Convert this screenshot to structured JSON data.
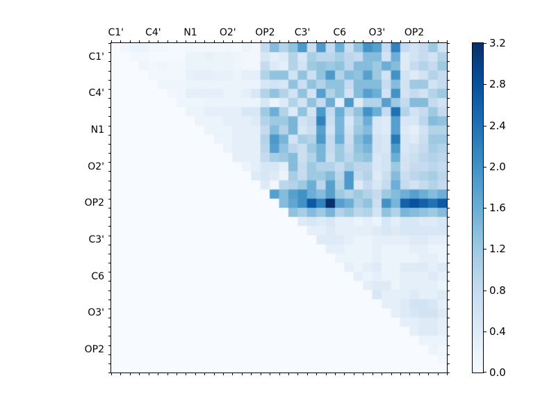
{
  "chart_data": {
    "type": "heatmap",
    "title": "",
    "xlabel": "",
    "ylabel": "",
    "grid": "off",
    "upper_triangular": true,
    "grid_size": 36,
    "cells_per_group": 4,
    "x_group_labels": [
      "C1'",
      "C4'",
      "N1",
      "O2'",
      "OP2",
      "C3'",
      "C6",
      "O3'",
      "OP2"
    ],
    "y_group_labels": [
      "C1'",
      "C4'",
      "N1",
      "O2'",
      "OP2",
      "C3'",
      "C6",
      "O3'",
      "OP2"
    ],
    "colorbar": {
      "position": "right",
      "min": 0.0,
      "max": 3.2,
      "tick_labels": [
        "0.0",
        "0.4",
        "0.8",
        "1.2",
        "1.6",
        "2.0",
        "2.4",
        "2.8",
        "3.2"
      ]
    },
    "colormap": "Blues",
    "colormap_stops": [
      "#f7fbff",
      "#deebf7",
      "#c6dbef",
      "#9ecae1",
      "#6baed6",
      "#4292c6",
      "#2171b5",
      "#08519c",
      "#08306b"
    ],
    "matrix": [
      [
        0,
        0.1,
        0.2,
        0.2,
        0.1,
        0.1,
        0.05,
        0.05,
        0.1,
        0.1,
        0.1,
        0.1,
        0.1,
        0.05,
        0.2,
        0.1,
        0.8,
        1.4,
        1.0,
        1.3,
        1.9,
        0.7,
        1.9,
        0.8,
        1.6,
        0.7,
        1.3,
        2.0,
        1.8,
        0.8,
        2.2,
        0.8,
        0.6,
        0.8,
        1.2,
        0.6
      ],
      [
        0,
        0,
        0.1,
        0.1,
        0.05,
        0.05,
        0.05,
        0.05,
        0.2,
        0.2,
        0.25,
        0.2,
        0.2,
        0.15,
        0.1,
        0.1,
        0.5,
        0.3,
        0.4,
        1.0,
        0.5,
        1.1,
        0.9,
        0.9,
        1.1,
        0.9,
        0.8,
        1.4,
        1.4,
        0.6,
        1.6,
        0.4,
        0.6,
        0.8,
        0.6,
        1.0
      ],
      [
        0,
        0,
        0,
        0.15,
        0.1,
        0.15,
        0.1,
        0.1,
        0.2,
        0.2,
        0.2,
        0.2,
        0.2,
        0.15,
        0.1,
        0.1,
        0.8,
        0.4,
        0.3,
        1.0,
        0.6,
        1.2,
        1.3,
        1.2,
        1.3,
        0.9,
        1.4,
        1.4,
        1.2,
        1.6,
        1.4,
        0.4,
        0.8,
        1.0,
        0.8,
        1.2
      ],
      [
        0,
        0,
        0,
        0,
        0.1,
        0.1,
        0.1,
        0.1,
        0.25,
        0.3,
        0.3,
        0.25,
        0.25,
        0.2,
        0.3,
        0.3,
        1.0,
        1.3,
        1.3,
        0.6,
        1.3,
        0.7,
        1.3,
        1.9,
        1.0,
        1.4,
        1.3,
        1.8,
        1.2,
        0.6,
        2.0,
        0.6,
        0.4,
        0.6,
        1.0,
        0.8
      ],
      [
        0,
        0,
        0,
        0,
        0,
        0.15,
        0.15,
        0.15,
        0.2,
        0.2,
        0.2,
        0.2,
        0.2,
        0.2,
        0.2,
        0.2,
        0.5,
        0.6,
        0.5,
        1.3,
        0.7,
        1.3,
        1.0,
        1.3,
        1.3,
        0.8,
        1.4,
        1.4,
        1.4,
        0.8,
        1.4,
        0.6,
        1.2,
        1.2,
        0.6,
        0.8
      ],
      [
        0,
        0,
        0,
        0,
        0,
        0,
        0.1,
        0.15,
        0.3,
        0.3,
        0.3,
        0.3,
        0.2,
        0.2,
        0.3,
        0.5,
        1.0,
        1.3,
        1.0,
        0.6,
        1.3,
        0.6,
        1.8,
        1.0,
        1.3,
        0.6,
        1.4,
        1.8,
        1.6,
        0.6,
        2.0,
        0.6,
        0.8,
        0.6,
        1.0,
        1.2
      ],
      [
        0,
        0,
        0,
        0,
        0,
        0,
        0,
        0.15,
        0.15,
        0.15,
        0.2,
        0.2,
        0.2,
        0.2,
        0.2,
        0.2,
        0.5,
        0.2,
        0.4,
        1.0,
        0.6,
        1.3,
        0.8,
        1.6,
        0.3,
        1.9,
        0.4,
        1.0,
        1.0,
        1.8,
        1.2,
        0.8,
        1.4,
        1.4,
        0.8,
        0.6
      ],
      [
        0,
        0,
        0,
        0,
        0,
        0,
        0,
        0,
        0.2,
        0.2,
        0.3,
        0.3,
        0.3,
        0.3,
        0.5,
        0.5,
        1.2,
        1.6,
        1.0,
        0.4,
        1.3,
        0.6,
        1.9,
        0.8,
        1.6,
        0.9,
        1.3,
        2.0,
        1.6,
        0.8,
        2.4,
        1.0,
        0.6,
        0.8,
        1.2,
        0.8
      ],
      [
        0,
        0,
        0,
        0,
        0,
        0,
        0,
        0,
        0,
        0.2,
        0.2,
        0.2,
        0.3,
        0.3,
        0.3,
        0.4,
        1.0,
        1.2,
        1.2,
        1.5,
        0.6,
        0.8,
        2.2,
        0.7,
        1.5,
        0.5,
        1.1,
        1.6,
        0.5,
        0.4,
        1.8,
        0.5,
        0.5,
        0.9,
        1.4,
        1.3
      ],
      [
        0,
        0,
        0,
        0,
        0,
        0,
        0,
        0,
        0,
        0,
        0.2,
        0.2,
        0.2,
        0.3,
        0.3,
        0.3,
        0.8,
        1.4,
        1.0,
        1.5,
        0.5,
        0.7,
        1.8,
        0.6,
        1.5,
        0.6,
        1.2,
        1.4,
        0.5,
        0.4,
        1.8,
        0.4,
        0.3,
        0.6,
        1.0,
        1.0
      ],
      [
        0,
        0,
        0,
        0,
        0,
        0,
        0,
        0,
        0,
        0,
        0,
        0.2,
        0.2,
        0.3,
        0.3,
        0.3,
        1.0,
        1.9,
        1.5,
        0.6,
        1.1,
        1.0,
        1.9,
        0.8,
        1.6,
        0.7,
        1.4,
        1.7,
        0.6,
        0.5,
        2.3,
        0.5,
        0.4,
        0.7,
        1.2,
        1.2
      ],
      [
        0,
        0,
        0,
        0,
        0,
        0,
        0,
        0,
        0,
        0,
        0,
        0,
        0.2,
        0.3,
        0.3,
        0.3,
        0.9,
        1.8,
        1.3,
        0.9,
        0.7,
        1.2,
        1.5,
        0.8,
        1.2,
        0.8,
        1.3,
        1.5,
        0.6,
        0.5,
        1.9,
        0.5,
        0.6,
        0.8,
        1.1,
        1.0
      ],
      [
        0,
        0,
        0,
        0,
        0,
        0,
        0,
        0,
        0,
        0,
        0,
        0,
        0,
        0.3,
        0.3,
        0.3,
        0.8,
        1.1,
        1.2,
        1.4,
        0.7,
        1.0,
        1.5,
        0.7,
        1.2,
        0.9,
        1.2,
        1.3,
        0.5,
        0.6,
        1.6,
        0.6,
        0.7,
        0.9,
        1.0,
        0.9
      ],
      [
        0,
        0,
        0,
        0,
        0,
        0,
        0,
        0,
        0,
        0,
        0,
        0,
        0,
        0,
        0.2,
        0.3,
        0.5,
        0.5,
        0.3,
        1.4,
        0.8,
        1.2,
        1.0,
        1.0,
        0.8,
        1.1,
        0.9,
        0.9,
        0.5,
        0.6,
        1.2,
        0.6,
        0.8,
        0.8,
        0.9,
        0.8
      ],
      [
        0,
        0,
        0,
        0,
        0,
        0,
        0,
        0,
        0,
        0,
        0,
        0,
        0,
        0,
        0,
        0.4,
        0.5,
        0.4,
        0.2,
        1.1,
        0.8,
        1.2,
        1.2,
        1.4,
        0.9,
        1.9,
        0.8,
        1.0,
        0.4,
        0.7,
        1.4,
        0.7,
        0.9,
        1.0,
        1.1,
        0.9
      ],
      [
        0,
        0,
        0,
        0,
        0,
        0,
        0,
        0,
        0,
        0,
        0,
        0,
        0,
        0,
        0,
        0,
        0.4,
        0.1,
        0.9,
        1.0,
        1.2,
        1.6,
        0.9,
        1.8,
        1.0,
        1.9,
        0.4,
        0.8,
        0.5,
        0.8,
        1.6,
        0.8,
        0.6,
        0.8,
        1.0,
        0.8
      ],
      [
        0,
        0,
        0,
        0,
        0,
        0,
        0,
        0,
        0,
        0,
        0,
        0,
        0,
        0,
        0,
        0,
        0,
        1.8,
        1.4,
        1.8,
        2.0,
        1.6,
        1.4,
        1.8,
        1.2,
        1.0,
        1.2,
        1.0,
        0.8,
        1.2,
        1.4,
        1.6,
        1.8,
        1.6,
        1.4,
        1.6
      ],
      [
        0,
        0,
        0,
        0,
        0,
        0,
        0,
        0,
        0,
        0,
        0,
        0,
        0,
        0,
        0,
        0,
        0,
        0,
        1.4,
        1.7,
        2.0,
        2.7,
        2.2,
        3.2,
        1.8,
        1.6,
        1.1,
        1.3,
        0.7,
        2.0,
        1.5,
        2.6,
        2.8,
        2.6,
        2.4,
        2.7
      ],
      [
        0,
        0,
        0,
        0,
        0,
        0,
        0,
        0,
        0,
        0,
        0,
        0,
        0,
        0,
        0,
        0,
        0,
        0,
        0,
        1.3,
        1.1,
        1.4,
        1.2,
        1.5,
        1.0,
        1.2,
        0.9,
        1.0,
        0.6,
        1.3,
        1.0,
        1.5,
        1.4,
        1.3,
        1.2,
        1.4
      ],
      [
        0,
        0,
        0,
        0,
        0,
        0,
        0,
        0,
        0,
        0,
        0,
        0,
        0,
        0,
        0,
        0,
        0,
        0,
        0,
        0,
        0.4,
        0.5,
        0.4,
        0.5,
        0.3,
        0.3,
        0.2,
        0.3,
        0.2,
        0.5,
        0.3,
        0.5,
        0.5,
        0.4,
        0.4,
        0.5
      ],
      [
        0,
        0,
        0,
        0,
        0,
        0,
        0,
        0,
        0,
        0,
        0,
        0,
        0,
        0,
        0,
        0,
        0,
        0,
        0,
        0,
        0,
        0.3,
        0.3,
        0.4,
        0.3,
        0.3,
        0.3,
        0.3,
        0.4,
        0.5,
        0.4,
        0.5,
        0.5,
        0.5,
        0.5,
        0.5
      ],
      [
        0,
        0,
        0,
        0,
        0,
        0,
        0,
        0,
        0,
        0,
        0,
        0,
        0,
        0,
        0,
        0,
        0,
        0,
        0,
        0,
        0,
        0,
        0.4,
        0.4,
        0.4,
        0.3,
        0.2,
        0.2,
        0.3,
        0.3,
        0.3,
        0.3,
        0.4,
        0.4,
        0.3,
        0.3
      ],
      [
        0,
        0,
        0,
        0,
        0,
        0,
        0,
        0,
        0,
        0,
        0,
        0,
        0,
        0,
        0,
        0,
        0,
        0,
        0,
        0,
        0,
        0,
        0,
        0.3,
        0.3,
        0.2,
        0.2,
        0.2,
        0.3,
        0.2,
        0.2,
        0.2,
        0.3,
        0.3,
        0.2,
        0.2
      ],
      [
        0,
        0,
        0,
        0,
        0,
        0,
        0,
        0,
        0,
        0,
        0,
        0,
        0,
        0,
        0,
        0,
        0,
        0,
        0,
        0,
        0,
        0,
        0,
        0,
        0.2,
        0.2,
        0.2,
        0.2,
        0.3,
        0.2,
        0.2,
        0.2,
        0.2,
        0.3,
        0.3,
        0.2
      ],
      [
        0,
        0,
        0,
        0,
        0,
        0,
        0,
        0,
        0,
        0,
        0,
        0,
        0,
        0,
        0,
        0,
        0,
        0,
        0,
        0,
        0,
        0,
        0,
        0,
        0,
        0.3,
        0.2,
        0.3,
        0.4,
        0.2,
        0.2,
        0.4,
        0.4,
        0.4,
        0.3,
        0.4
      ],
      [
        0,
        0,
        0,
        0,
        0,
        0,
        0,
        0,
        0,
        0,
        0,
        0,
        0,
        0,
        0,
        0,
        0,
        0,
        0,
        0,
        0,
        0,
        0,
        0,
        0,
        0,
        0.3,
        0.2,
        0.3,
        0.2,
        0.2,
        0.3,
        0.3,
        0.3,
        0.4,
        0.3
      ],
      [
        0,
        0,
        0,
        0,
        0,
        0,
        0,
        0,
        0,
        0,
        0,
        0,
        0,
        0,
        0,
        0,
        0,
        0,
        0,
        0,
        0,
        0,
        0,
        0,
        0,
        0,
        0,
        0.3,
        0.4,
        0.4,
        0.2,
        0.3,
        0.3,
        0.3,
        0.3,
        0.2
      ],
      [
        0,
        0,
        0,
        0,
        0,
        0,
        0,
        0,
        0,
        0,
        0,
        0,
        0,
        0,
        0,
        0,
        0,
        0,
        0,
        0,
        0,
        0,
        0,
        0,
        0,
        0,
        0,
        0,
        0.5,
        0.3,
        0.3,
        0.3,
        0.4,
        0.3,
        0.3,
        0.4
      ],
      [
        0,
        0,
        0,
        0,
        0,
        0,
        0,
        0,
        0,
        0,
        0,
        0,
        0,
        0,
        0,
        0,
        0,
        0,
        0,
        0,
        0,
        0,
        0,
        0,
        0,
        0,
        0,
        0,
        0,
        0.3,
        0.3,
        0.4,
        0.6,
        0.6,
        0.5,
        0.3
      ],
      [
        0,
        0,
        0,
        0,
        0,
        0,
        0,
        0,
        0,
        0,
        0,
        0,
        0,
        0,
        0,
        0,
        0,
        0,
        0,
        0,
        0,
        0,
        0,
        0,
        0,
        0,
        0,
        0,
        0,
        0,
        0.3,
        0.4,
        0.5,
        0.6,
        0.6,
        0.4
      ],
      [
        0,
        0,
        0,
        0,
        0,
        0,
        0,
        0,
        0,
        0,
        0,
        0,
        0,
        0,
        0,
        0,
        0,
        0,
        0,
        0,
        0,
        0,
        0,
        0,
        0,
        0,
        0,
        0,
        0,
        0,
        0,
        0.3,
        0.3,
        0.4,
        0.4,
        0.3
      ],
      [
        0,
        0,
        0,
        0,
        0,
        0,
        0,
        0,
        0,
        0,
        0,
        0,
        0,
        0,
        0,
        0,
        0,
        0,
        0,
        0,
        0,
        0,
        0,
        0,
        0,
        0,
        0,
        0,
        0,
        0,
        0,
        0,
        0.3,
        0.4,
        0.4,
        0.3
      ],
      [
        0,
        0,
        0,
        0,
        0,
        0,
        0,
        0,
        0,
        0,
        0,
        0,
        0,
        0,
        0,
        0,
        0,
        0,
        0,
        0,
        0,
        0,
        0,
        0,
        0,
        0,
        0,
        0,
        0,
        0,
        0,
        0,
        0,
        0.2,
        0.2,
        0.2
      ],
      [
        0,
        0,
        0,
        0,
        0,
        0,
        0,
        0,
        0,
        0,
        0,
        0,
        0,
        0,
        0,
        0,
        0,
        0,
        0,
        0,
        0,
        0,
        0,
        0,
        0,
        0,
        0,
        0,
        0,
        0,
        0,
        0,
        0,
        0,
        0.2,
        0.1
      ],
      [
        0,
        0,
        0,
        0,
        0,
        0,
        0,
        0,
        0,
        0,
        0,
        0,
        0,
        0,
        0,
        0,
        0,
        0,
        0,
        0,
        0,
        0,
        0,
        0,
        0,
        0,
        0,
        0,
        0,
        0,
        0,
        0,
        0,
        0,
        0,
        0.1
      ],
      [
        0,
        0,
        0,
        0,
        0,
        0,
        0,
        0,
        0,
        0,
        0,
        0,
        0,
        0,
        0,
        0,
        0,
        0,
        0,
        0,
        0,
        0,
        0,
        0,
        0,
        0,
        0,
        0,
        0,
        0,
        0,
        0,
        0,
        0,
        0,
        0
      ]
    ]
  }
}
